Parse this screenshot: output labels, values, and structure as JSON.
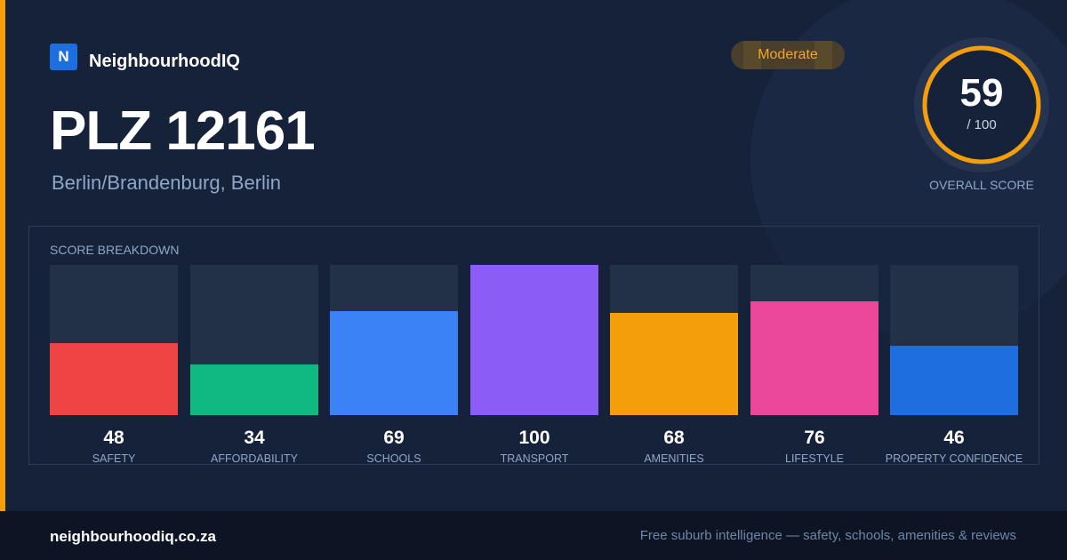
{
  "brand": {
    "logo_letter": "N",
    "name": "NeighbourhoodIQ"
  },
  "badge": {
    "label": "Moderate"
  },
  "location": {
    "title": "PLZ 12161",
    "subtitle": "Berlin/Brandenburg, Berlin"
  },
  "overall": {
    "score": "59",
    "max_label": "/ 100",
    "score_fraction": 0.59,
    "label": "OVERALL SCORE",
    "ring_color": "#f59e0b"
  },
  "breakdown": {
    "title": "SCORE BREAKDOWN",
    "items": [
      {
        "value": "48",
        "label": "SAFETY",
        "color": "#ef4444"
      },
      {
        "value": "34",
        "label": "AFFORDABILITY",
        "color": "#10b981"
      },
      {
        "value": "69",
        "label": "SCHOOLS",
        "color": "#3b82f6"
      },
      {
        "value": "100",
        "label": "TRANSPORT",
        "color": "#8b5cf6"
      },
      {
        "value": "68",
        "label": "AMENITIES",
        "color": "#f59e0b"
      },
      {
        "value": "76",
        "label": "LIFESTYLE",
        "color": "#ec4899"
      },
      {
        "value": "46",
        "label": "PROPERTY CONFIDENCE",
        "color": "#1d6fe0"
      }
    ]
  },
  "footer": {
    "site": "neighbourhoodiq.co.za",
    "tagline": "Free suburb intelligence — safety, schools, amenities & reviews"
  }
}
